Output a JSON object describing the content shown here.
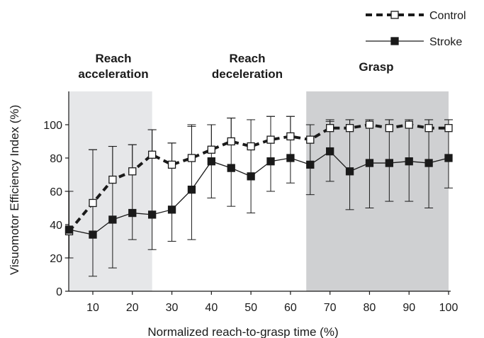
{
  "chart_data": {
    "type": "line",
    "xlabel": "Normalized reach-to-grasp time (%)",
    "ylabel": "Visuomotor Efficiency Index (%)",
    "xlim": [
      2,
      100
    ],
    "ylim": [
      0,
      110
    ],
    "x_ticks": [
      10,
      20,
      30,
      40,
      50,
      60,
      70,
      80,
      90,
      100
    ],
    "y_ticks": [
      0,
      20,
      40,
      60,
      80,
      100
    ],
    "legend_position": "top-right",
    "phases": [
      {
        "label_line1": "Reach",
        "label_line2": "acceleration",
        "x_start": 4,
        "x_end": 25,
        "color": "#e6e7e9"
      },
      {
        "label_line1": "Reach",
        "label_line2": "deceleration",
        "x_start": 25,
        "x_end": 64,
        "color": "#ffffff"
      },
      {
        "label_line1": "Grasp",
        "label_line2": "",
        "x_start": 64,
        "x_end": 100,
        "color": "#cfd0d2"
      }
    ],
    "x": [
      4,
      10,
      15,
      20,
      25,
      30,
      35,
      40,
      45,
      50,
      55,
      60,
      65,
      70,
      75,
      80,
      85,
      90,
      95,
      100
    ],
    "series": [
      {
        "name": "Control",
        "style": "dashed-open-square",
        "values": [
          36,
          53,
          67,
          72,
          82,
          76,
          80,
          85,
          90,
          87,
          91,
          93,
          91,
          98,
          98,
          100,
          98,
          100,
          98,
          98
        ],
        "err_up": [],
        "err_down": []
      },
      {
        "name": "Stroke",
        "style": "solid-filled-square",
        "values": [
          37,
          34,
          43,
          47,
          46,
          49,
          61,
          78,
          74,
          69,
          78,
          80,
          76,
          84,
          72,
          77,
          77,
          78,
          77,
          80
        ],
        "err_up": [
          23,
          51,
          44,
          41,
          51,
          40,
          39,
          22,
          30,
          34,
          27,
          25,
          24,
          19,
          31,
          26,
          26,
          25,
          26,
          23
        ],
        "err_down": [
          17,
          25,
          29,
          16,
          21,
          19,
          30,
          22,
          23,
          22,
          18,
          15,
          18,
          18,
          23,
          27,
          23,
          24,
          27,
          18
        ]
      }
    ],
    "control_err_up": [
      0,
      32,
      20,
      16,
      15,
      13,
      19,
      15,
      14,
      0,
      14,
      12,
      0,
      4,
      5,
      0,
      5,
      0,
      5,
      5
    ]
  }
}
